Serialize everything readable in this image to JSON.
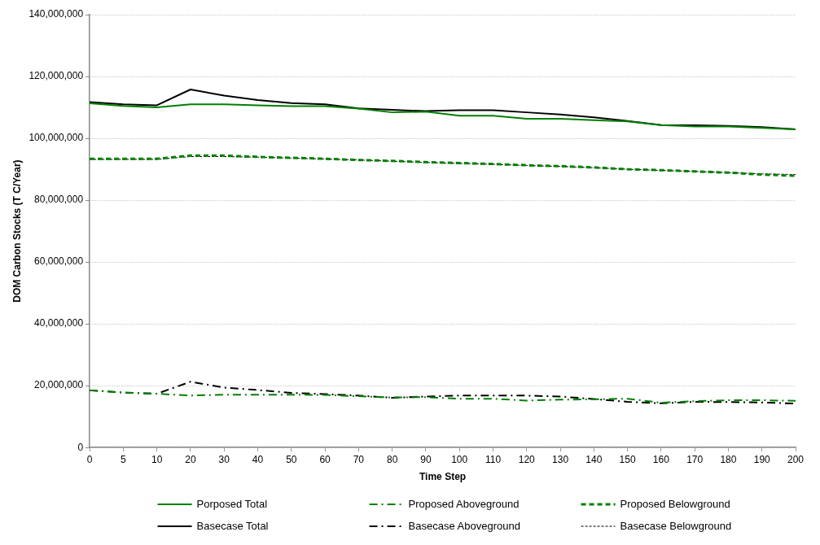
{
  "chart_data": {
    "type": "line",
    "xlabel": "Time Step",
    "ylabel": "DOM Carbon Stocks (T C/Year)",
    "categories": [
      "0",
      "5",
      "10",
      "20",
      "30",
      "40",
      "50",
      "60",
      "70",
      "80",
      "90",
      "100",
      "110",
      "120",
      "130",
      "140",
      "150",
      "160",
      "170",
      "180",
      "190",
      "200"
    ],
    "series": [
      {
        "name": "Porposed Total",
        "color": "#008000",
        "line_style": "solid",
        "values": [
          111300000,
          110500000,
          110000000,
          111000000,
          111000000,
          110700000,
          110400000,
          110400000,
          109600000,
          108400000,
          108600000,
          107300000,
          107300000,
          106300000,
          106300000,
          105900000,
          105500000,
          104300000,
          103800000,
          103800000,
          103400000,
          102900000
        ]
      },
      {
        "name": "Proposed Aboveground",
        "color": "#008000",
        "line_style": "dashdot",
        "values": [
          18500000,
          17800000,
          17400000,
          16800000,
          17100000,
          17100000,
          17100000,
          17000000,
          16600000,
          16200000,
          16300000,
          15800000,
          15800000,
          15200000,
          15500000,
          15600000,
          15800000,
          14500000,
          15000000,
          15300000,
          15300000,
          15100000
        ]
      },
      {
        "name": "Proposed Belowground",
        "color": "#008000",
        "line_style": "dashed",
        "values": [
          93400000,
          93400000,
          93400000,
          94400000,
          94400000,
          94000000,
          93700000,
          93400000,
          93000000,
          92700000,
          92300000,
          92000000,
          91700000,
          91300000,
          91000000,
          90600000,
          90000000,
          89700000,
          89300000,
          88900000,
          88300000,
          87900000
        ]
      },
      {
        "name": "Basecase Total",
        "color": "#000000",
        "line_style": "solid",
        "values": [
          111700000,
          111000000,
          110700000,
          115800000,
          113800000,
          112400000,
          111400000,
          111000000,
          109700000,
          109200000,
          108800000,
          109100000,
          109100000,
          108400000,
          107700000,
          106800000,
          105600000,
          104300000,
          104200000,
          104000000,
          103600000,
          102900000
        ]
      },
      {
        "name": "Basecase Aboveground",
        "color": "#000000",
        "line_style": "dashdot",
        "values": [
          18500000,
          17800000,
          17400000,
          21300000,
          19400000,
          18600000,
          17700000,
          17300000,
          16800000,
          16100000,
          16500000,
          16800000,
          16800000,
          16800000,
          16500000,
          15700000,
          14800000,
          14300000,
          14800000,
          14700000,
          14600000,
          14200000
        ]
      },
      {
        "name": "Basecase Belowground",
        "color": "#000000",
        "line_style": "dotted",
        "values": [
          93200000,
          93200000,
          93200000,
          94100000,
          94100000,
          93900000,
          93600000,
          93300000,
          93000000,
          92600000,
          92200000,
          91900000,
          91600000,
          91200000,
          90900000,
          90500000,
          90000000,
          89600000,
          89300000,
          88900000,
          88500000,
          88300000
        ]
      }
    ],
    "ylim": [
      0,
      140000000
    ],
    "yticks": [
      0,
      {
        "value": 20000000,
        "label": "20,000,000"
      },
      {
        "value": 40000000,
        "label": "40,000,000"
      },
      {
        "value": 60000000,
        "label": "60,000,000"
      },
      {
        "value": 80000000,
        "label": "80,000,000"
      },
      {
        "value": 100000000,
        "label": "100,000,000"
      },
      {
        "value": 120000000,
        "label": "120,000,000"
      },
      {
        "value": 140000000,
        "label": "140,000,000"
      }
    ],
    "grid": "y",
    "legend": "bottom",
    "marker": "none"
  }
}
